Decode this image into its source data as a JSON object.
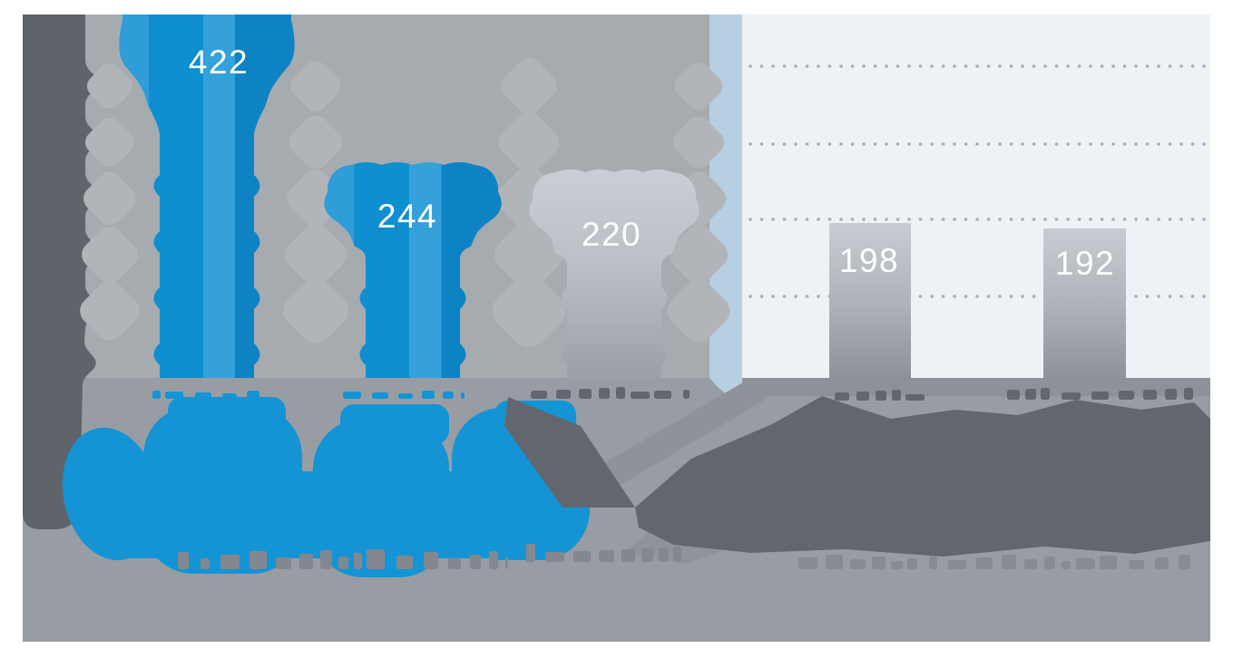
{
  "chart_data": {
    "type": "bar",
    "categories": [
      "",
      "",
      "",
      "",
      ""
    ],
    "values": [
      422,
      244,
      220,
      198,
      192
    ],
    "series_note": "pictogram-style columns: first two blue, third silver (fading), last two plain gray bars on light panel",
    "title": "",
    "xlabel": "",
    "ylabel": "",
    "ylim": [
      0,
      470
    ],
    "gridlines": [
      100,
      200,
      300,
      400
    ],
    "gridline_style": "dotted, only on right light panel",
    "legend": "none",
    "annotations": "category labels under each column and two large stat callouts at the bottom (blue on left, dark gray on right) are rendered as garbled/illegible blob text in the source image"
  },
  "labels": {
    "bar1": "422",
    "bar2": "244",
    "bar3": "220",
    "bar4": "198",
    "bar5": "192"
  },
  "colors": {
    "blue": "#0f8ed0",
    "blue_bright": "#1494d4",
    "silver": "#c6cad0",
    "gray_bar_top": "#c9cdd3",
    "gray_bar_bottom": "#8d9298",
    "panel": "#eef1f6",
    "left_background": "#a6abb0",
    "bottom_background": "#989da3",
    "dark_column": "#5f646b",
    "dark_text_blob": "#62676d",
    "light_blue_strip": "#b7cfe2",
    "diamond_chain": "#b1b5ba",
    "grid_dot": "#a9aeb4",
    "value_text": "#ffffff"
  }
}
